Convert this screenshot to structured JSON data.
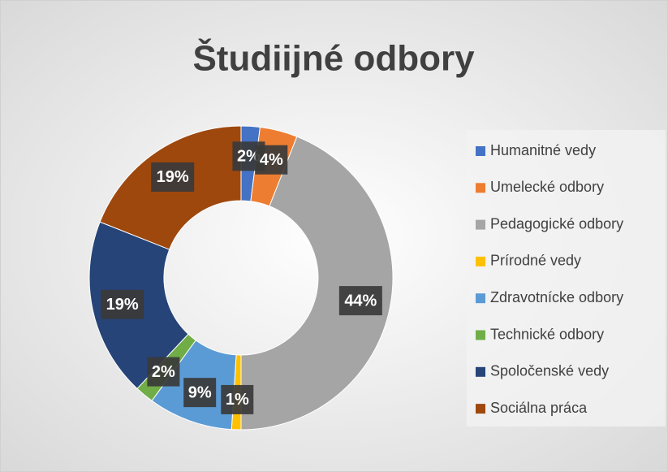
{
  "chart_data": {
    "type": "donut",
    "title": "Študiijné odbory",
    "categories": [
      "Humanitné vedy",
      "Umelecké odbory",
      "Pedagogické odbory",
      "Prírodné vedy",
      "Zdravotnícke odbory",
      "Technické odbory",
      "Spoločenské vedy",
      "Sociálna práca"
    ],
    "values": [
      2,
      4,
      44,
      1,
      9,
      2,
      19,
      19
    ],
    "value_labels": [
      "2%",
      "4%",
      "44%",
      "1%",
      "9%",
      "2%",
      "19%",
      "19%"
    ],
    "colors": [
      "#4472c4",
      "#ed7d31",
      "#a5a5a5",
      "#ffc000",
      "#5b9bd5",
      "#70ad47",
      "#264478",
      "#9e480e"
    ],
    "legend": "right"
  }
}
